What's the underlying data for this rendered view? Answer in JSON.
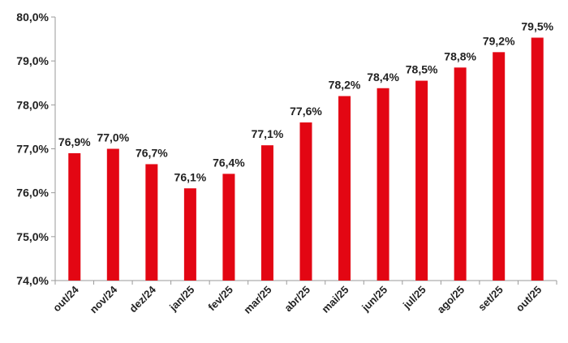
{
  "chart_data": {
    "type": "bar",
    "title": "",
    "xlabel": "",
    "ylabel": "",
    "categories": [
      "out/24",
      "nov/24",
      "dez/24",
      "jan/25",
      "fev/25",
      "mar/25",
      "abr/25",
      "mai/25",
      "jun/25",
      "jul/25",
      "ago/25",
      "set/25",
      "out/25"
    ],
    "values": [
      76.9,
      77.0,
      76.65,
      76.1,
      76.43,
      77.08,
      77.6,
      78.2,
      78.38,
      78.55,
      78.85,
      79.2,
      79.53
    ],
    "data_labels": [
      "76,9%",
      "77,0%",
      "76,7%",
      "76,1%",
      "76,4%",
      "77,1%",
      "77,6%",
      "78,2%",
      "78,4%",
      "78,5%",
      "78,8%",
      "79,2%",
      "79,5%"
    ],
    "ylim": [
      74,
      80
    ],
    "yticks": [
      "74,0%",
      "75,0%",
      "76,0%",
      "77,0%",
      "78,0%",
      "79,0%",
      "80,0%"
    ],
    "grid": false,
    "legend": "none",
    "bar_color": "#e30613"
  }
}
